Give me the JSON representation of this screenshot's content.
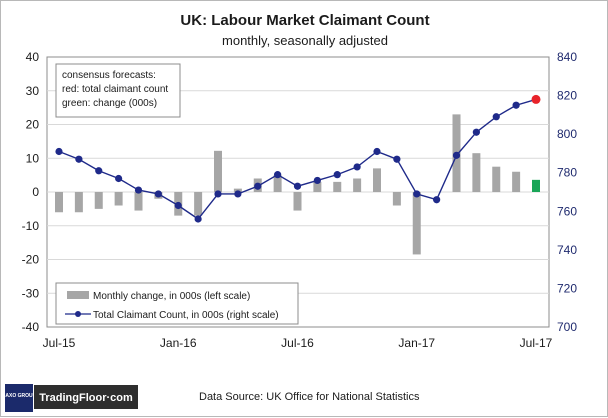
{
  "chart_data": {
    "type": "bar+line",
    "title": "UK: Labour Market Claimant Count",
    "subtitle": "monthly, seasonally adjusted",
    "categories": [
      "Jul-15",
      "Aug-15",
      "Sep-15",
      "Oct-15",
      "Nov-15",
      "Dec-15",
      "Jan-16",
      "Feb-16",
      "Mar-16",
      "Apr-16",
      "May-16",
      "Jun-16",
      "Jul-16",
      "Aug-16",
      "Sep-16",
      "Oct-16",
      "Nov-16",
      "Dec-16",
      "Jan-17",
      "Feb-17",
      "Mar-17",
      "Apr-17",
      "May-17",
      "Jun-17",
      "Jul-17"
    ],
    "x_tick_labels": [
      "Jul-15",
      "Jan-16",
      "Jul-16",
      "Jan-17",
      "Jul-17"
    ],
    "left_axis": {
      "ylim": [
        -40,
        40
      ],
      "ticks": [
        -40,
        -30,
        -20,
        -10,
        0,
        10,
        20,
        30,
        40
      ]
    },
    "right_axis": {
      "ylim": [
        700,
        840
      ],
      "ticks": [
        700,
        720,
        740,
        760,
        780,
        800,
        820,
        840
      ]
    },
    "series": [
      {
        "name": "Monthly change, in 000s (left scale)",
        "type": "bar",
        "axis": "left",
        "color": "#a6a6a6",
        "values": [
          -6,
          -6,
          -5,
          -4,
          -5.5,
          -2,
          -7,
          -7,
          12.2,
          1,
          4,
          5,
          -5.5,
          3,
          3,
          4,
          7,
          -4,
          -18.5,
          0,
          23,
          11.5,
          7.5,
          6,
          3.6
        ],
        "forecast_color": "#19a557",
        "forecast_index": 24
      },
      {
        "name": "Total Claimant Count, in 000s (right scale)",
        "type": "line",
        "axis": "right",
        "color": "#1f2a8a",
        "values": [
          791,
          787,
          781,
          777,
          771,
          769,
          763,
          756,
          769,
          769,
          773,
          779,
          773,
          776,
          779,
          783,
          791,
          787,
          769,
          766,
          789,
          801,
          809,
          815,
          818
        ],
        "forecast_color": "#e8232a",
        "forecast_index": 24
      }
    ],
    "grid": true,
    "legend_position": "bottom-left",
    "note": {
      "line1": "consensus forecasts:",
      "line2": "red: total claimant count",
      "line3": "green: change (000s)"
    }
  },
  "legend": {
    "bar_label": "Monthly change, in 000s (left scale)",
    "line_label": "Total Claimant Count, in 000s (right scale)"
  },
  "footer": {
    "brand_small": "SAXO GROUP",
    "brand": "TradingFloor·com",
    "source": "Data Source: UK Office for National Statistics"
  }
}
